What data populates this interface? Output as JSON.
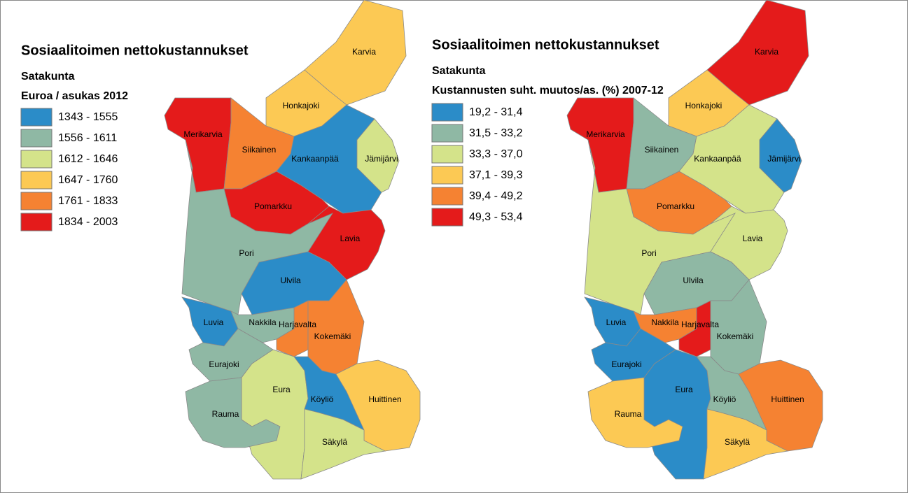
{
  "maps": [
    {
      "title": "Sosiaalitoimen nettokustannukset",
      "subtitle": "Satakunta",
      "legend_title": "Euroa / asukas 2012",
      "classes": [
        {
          "label": "1343 - 1555",
          "color": "#2b8cc8"
        },
        {
          "label": "1556 - 1611",
          "color": "#8fb8a4"
        },
        {
          "label": "1612 - 1646",
          "color": "#d4e38a"
        },
        {
          "label": "1647 - 1760",
          "color": "#fcc954"
        },
        {
          "label": "1761 - 1833",
          "color": "#f58232"
        },
        {
          "label": "1834 - 2003",
          "color": "#e41b1b"
        }
      ],
      "municipalities": [
        {
          "name": "Karvia",
          "class": 3
        },
        {
          "name": "Honkajoki",
          "class": 3
        },
        {
          "name": "Merikarvia",
          "class": 5
        },
        {
          "name": "Siikainen",
          "class": 4
        },
        {
          "name": "Kankaanpää",
          "class": 0
        },
        {
          "name": "Jämijärvi",
          "class": 2
        },
        {
          "name": "Pomarkku",
          "class": 5
        },
        {
          "name": "Lavia",
          "class": 5
        },
        {
          "name": "Pori",
          "class": 1
        },
        {
          "name": "Ulvila",
          "class": 0
        },
        {
          "name": "Luvia",
          "class": 0
        },
        {
          "name": "Nakkila",
          "class": 1
        },
        {
          "name": "Harjavalta",
          "class": 4
        },
        {
          "name": "Kokemäki",
          "class": 4
        },
        {
          "name": "Eurajoki",
          "class": 1
        },
        {
          "name": "Eura",
          "class": 2
        },
        {
          "name": "Köyliö",
          "class": 0
        },
        {
          "name": "Huittinen",
          "class": 3
        },
        {
          "name": "Rauma",
          "class": 1
        },
        {
          "name": "Säkylä",
          "class": 2
        }
      ]
    },
    {
      "title": "Sosiaalitoimen nettokustannukset",
      "subtitle": "Satakunta",
      "legend_title": "Kustannusten suht. muutos/as. (%) 2007-12",
      "classes": [
        {
          "label": "19,2 - 31,4",
          "color": "#2b8cc8"
        },
        {
          "label": "31,5 - 33,2",
          "color": "#8fb8a4"
        },
        {
          "label": "33,3 - 37,0",
          "color": "#d4e38a"
        },
        {
          "label": "37,1 - 39,3",
          "color": "#fcc954"
        },
        {
          "label": "39,4 - 49,2",
          "color": "#f58232"
        },
        {
          "label": "49,3 - 53,4",
          "color": "#e41b1b"
        }
      ],
      "municipalities": [
        {
          "name": "Karvia",
          "class": 5
        },
        {
          "name": "Honkajoki",
          "class": 3
        },
        {
          "name": "Merikarvia",
          "class": 5
        },
        {
          "name": "Siikainen",
          "class": 1
        },
        {
          "name": "Kankaanpää",
          "class": 2
        },
        {
          "name": "Jämijärvi",
          "class": 0
        },
        {
          "name": "Pomarkku",
          "class": 4
        },
        {
          "name": "Lavia",
          "class": 2
        },
        {
          "name": "Pori",
          "class": 2
        },
        {
          "name": "Ulvila",
          "class": 1
        },
        {
          "name": "Luvia",
          "class": 0
        },
        {
          "name": "Nakkila",
          "class": 4
        },
        {
          "name": "Harjavalta",
          "class": 5
        },
        {
          "name": "Kokemäki",
          "class": 1
        },
        {
          "name": "Eurajoki",
          "class": 0
        },
        {
          "name": "Eura",
          "class": 0
        },
        {
          "name": "Köyliö",
          "class": 1
        },
        {
          "name": "Huittinen",
          "class": 4
        },
        {
          "name": "Rauma",
          "class": 3
        },
        {
          "name": "Säkylä",
          "class": 3
        }
      ]
    }
  ]
}
